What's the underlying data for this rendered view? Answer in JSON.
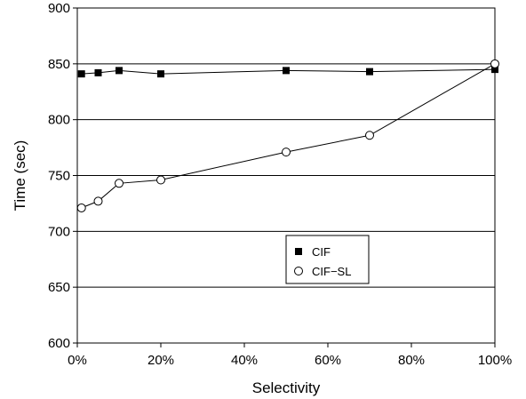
{
  "chart_data": {
    "type": "line",
    "xlabel": "Selectivity",
    "ylabel": "Time (sec)",
    "xlim": [
      0,
      100
    ],
    "ylim": [
      600,
      900
    ],
    "x_ticks": [
      0,
      20,
      40,
      60,
      80,
      100
    ],
    "x_tick_labels": [
      "0%",
      "20%",
      "40%",
      "60%",
      "80%",
      "100%"
    ],
    "y_ticks": [
      600,
      650,
      700,
      750,
      800,
      850,
      900
    ],
    "y_tick_labels": [
      "600",
      "650",
      "700",
      "750",
      "800",
      "850",
      "900"
    ],
    "grid": "horizontal",
    "legend_position": "bottom-center",
    "series": [
      {
        "name": "CIF",
        "marker": "filled-square",
        "color": "#000000",
        "x": [
          1,
          5,
          10,
          20,
          50,
          70,
          100
        ],
        "y": [
          841,
          842,
          844,
          841,
          844,
          843,
          845
        ]
      },
      {
        "name": "CIF−SL",
        "marker": "open-circle",
        "color": "#000000",
        "x": [
          1,
          5,
          10,
          20,
          50,
          70,
          100
        ],
        "y": [
          721,
          727,
          743,
          746,
          771,
          786,
          850
        ]
      }
    ]
  }
}
